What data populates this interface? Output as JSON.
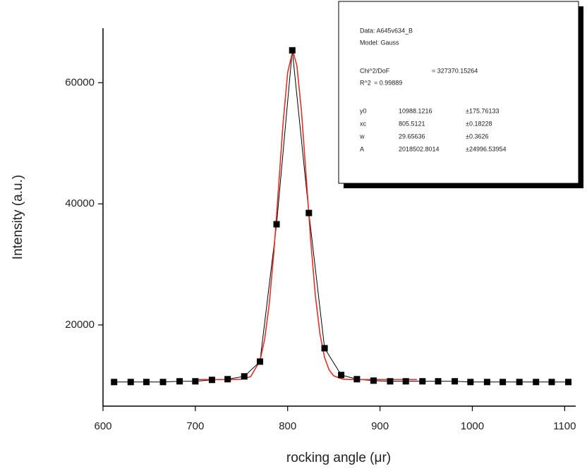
{
  "chart_data": {
    "type": "scatter",
    "x_label": "rocking angle (μr)",
    "y_label": "Intensity (a.u.)",
    "xlim": [
      600,
      1112
    ],
    "ylim": [
      6600,
      69000
    ],
    "xticks": [
      600,
      700,
      800,
      900,
      1000,
      1100
    ],
    "yticks": [
      20000,
      40000,
      60000
    ],
    "series": [
      {
        "name": "A645v634_B",
        "color": "#000000",
        "marker": "square",
        "line": true,
        "x": [
          612,
          630,
          647,
          665,
          683,
          700,
          718,
          735,
          753,
          770,
          788,
          805,
          823,
          840,
          858,
          875,
          893,
          911,
          928,
          946,
          963,
          981,
          998,
          1016,
          1033,
          1051,
          1069,
          1086,
          1104
        ],
        "values": [
          10580,
          10580,
          10580,
          10580,
          10700,
          10700,
          10930,
          11050,
          11510,
          13950,
          36630,
          65350,
          38490,
          16160,
          11740,
          11050,
          10810,
          10700,
          10700,
          10700,
          10700,
          10700,
          10580,
          10580,
          10580,
          10580,
          10580,
          10580,
          10580
        ]
      },
      {
        "name": "Gauss",
        "color": "#e0302a",
        "marker": "none",
        "line": true,
        "x": [
          700,
          710,
          720,
          730,
          740,
          750,
          760,
          770,
          775,
          780,
          785,
          790,
          795,
          800,
          805.5,
          810,
          815,
          820,
          825,
          830,
          835,
          840,
          845,
          850,
          860,
          870,
          880,
          890,
          900,
          910,
          920,
          930,
          940
        ],
        "values": [
          10988,
          10988,
          10988,
          10988,
          10991,
          11037,
          11479,
          14081,
          17542,
          23369,
          31872,
          42438,
          53250,
          61678,
          65288,
          62848,
          55215,
          44658,
          33859,
          24862,
          18498,
          14615,
          12552,
          11590,
          11051,
          10992,
          10988,
          10988,
          10988,
          10988,
          10988,
          10988,
          10988
        ]
      }
    ],
    "fit_box": {
      "data": "Data: A645v634_B",
      "model": "Model: Gauss",
      "chi2_label": "Chi^2/DoF",
      "chi2_value": "= 327370.15264",
      "r2_label": "R^2",
      "r2_value": "=  0.99889",
      "params": [
        [
          "y0",
          "10988.1216",
          "±175.76133"
        ],
        [
          "xc",
          "805.5121",
          "±0.18228"
        ],
        [
          "w",
          "29.65636",
          "±0.3626"
        ],
        [
          "A",
          "2018502.8014",
          "±24996.53954"
        ]
      ]
    }
  }
}
